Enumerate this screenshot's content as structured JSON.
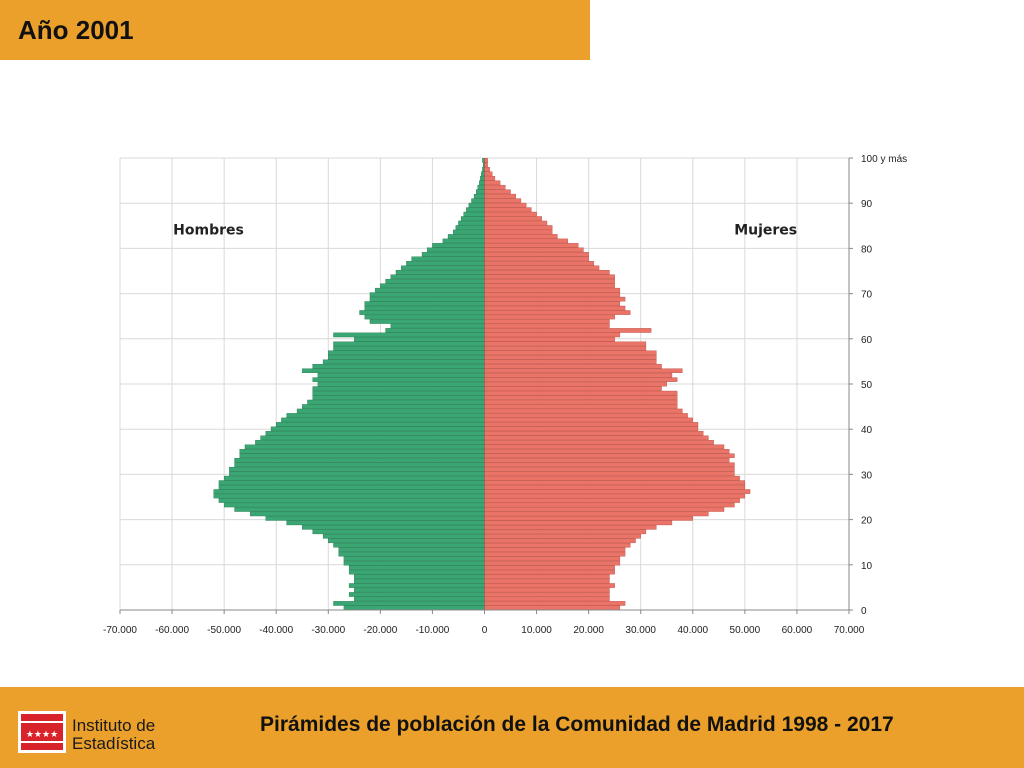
{
  "header": {
    "title": "Año 2001"
  },
  "footer": {
    "title": "Pirámides de población de la Comunidad de Madrid  1998 - 2017",
    "logo_line1": "Instituto de",
    "logo_line2": "Estadística"
  },
  "colors": {
    "accent": "#eba02c",
    "male": "#3aa673",
    "female": "#ea7468",
    "grid": "#d9d9d9"
  },
  "chart_data": {
    "type": "bar",
    "orientation": "horizontal-pyramid",
    "xlim": [
      -70000,
      70000
    ],
    "ylim": [
      0,
      100
    ],
    "x_ticks": [
      -70000,
      -60000,
      -50000,
      -40000,
      -30000,
      -20000,
      -10000,
      0,
      10000,
      20000,
      30000,
      40000,
      50000,
      60000,
      70000
    ],
    "x_tick_labels": [
      "-70.000",
      "-60.000",
      "-50.000",
      "-40.000",
      "-30.000",
      "-20.000",
      "-10.000",
      "0",
      "10.000",
      "20.000",
      "30.000",
      "40.000",
      "50.000",
      "60.000",
      "70.000"
    ],
    "y_ticks": [
      0,
      10,
      20,
      30,
      40,
      50,
      60,
      70,
      80,
      90,
      100
    ],
    "y_tick_labels": [
      "0",
      "10",
      "20",
      "30",
      "40",
      "50",
      "60",
      "70",
      "80",
      "90",
      "100 y más"
    ],
    "series": [
      {
        "name": "Hombres",
        "values": [
          -27000,
          -29000,
          -25000,
          -26000,
          -25000,
          -26000,
          -25000,
          -25000,
          -26000,
          -26000,
          -27000,
          -27000,
          -28000,
          -28000,
          -29000,
          -30000,
          -31000,
          -33000,
          -35000,
          -38000,
          -42000,
          -45000,
          -48000,
          -50000,
          -51000,
          -52000,
          -52000,
          -51000,
          -51000,
          -50000,
          -49000,
          -49000,
          -48000,
          -48000,
          -47000,
          -47000,
          -46000,
          -44000,
          -43000,
          -42000,
          -41000,
          -40000,
          -39000,
          -38000,
          -36000,
          -35000,
          -34000,
          -33000,
          -33000,
          -33000,
          -32000,
          -33000,
          -32000,
          -35000,
          -33000,
          -31000,
          -30000,
          -30000,
          -29000,
          -29000,
          -25000,
          -29000,
          -19000,
          -18000,
          -22000,
          -23000,
          -24000,
          -23000,
          -23000,
          -22000,
          -22000,
          -21000,
          -20000,
          -19000,
          -18000,
          -17000,
          -16000,
          -15000,
          -14000,
          -12000,
          -11000,
          -10000,
          -8000,
          -7000,
          -6000,
          -5500,
          -5000,
          -4500,
          -4000,
          -3500,
          -3000,
          -2500,
          -2000,
          -1600,
          -1300,
          -1000,
          -800,
          -600,
          -400,
          -250,
          -400
        ]
      },
      {
        "name": "Mujeres",
        "values": [
          26000,
          27000,
          24000,
          24000,
          24000,
          25000,
          24000,
          24000,
          25000,
          25000,
          26000,
          26000,
          27000,
          27000,
          28000,
          29000,
          30000,
          31000,
          33000,
          36000,
          40000,
          43000,
          46000,
          48000,
          49000,
          50000,
          51000,
          50000,
          50000,
          49000,
          48000,
          48000,
          48000,
          47000,
          48000,
          47000,
          46000,
          44000,
          43000,
          42000,
          41000,
          41000,
          40000,
          39000,
          38000,
          37000,
          37000,
          37000,
          37000,
          34000,
          35000,
          37000,
          36000,
          38000,
          34000,
          33000,
          33000,
          33000,
          31000,
          31000,
          25000,
          26000,
          32000,
          24000,
          24000,
          25000,
          28000,
          27000,
          26000,
          27000,
          26000,
          26000,
          25000,
          25000,
          25000,
          24000,
          22000,
          21000,
          20000,
          20000,
          19000,
          18000,
          16000,
          14000,
          13000,
          13000,
          12000,
          11000,
          10000,
          9000,
          8000,
          7000,
          6000,
          5000,
          4000,
          3000,
          2000,
          1500,
          1000,
          600,
          600
        ]
      }
    ],
    "annotations": [
      "Hombres",
      "Mujeres"
    ]
  }
}
